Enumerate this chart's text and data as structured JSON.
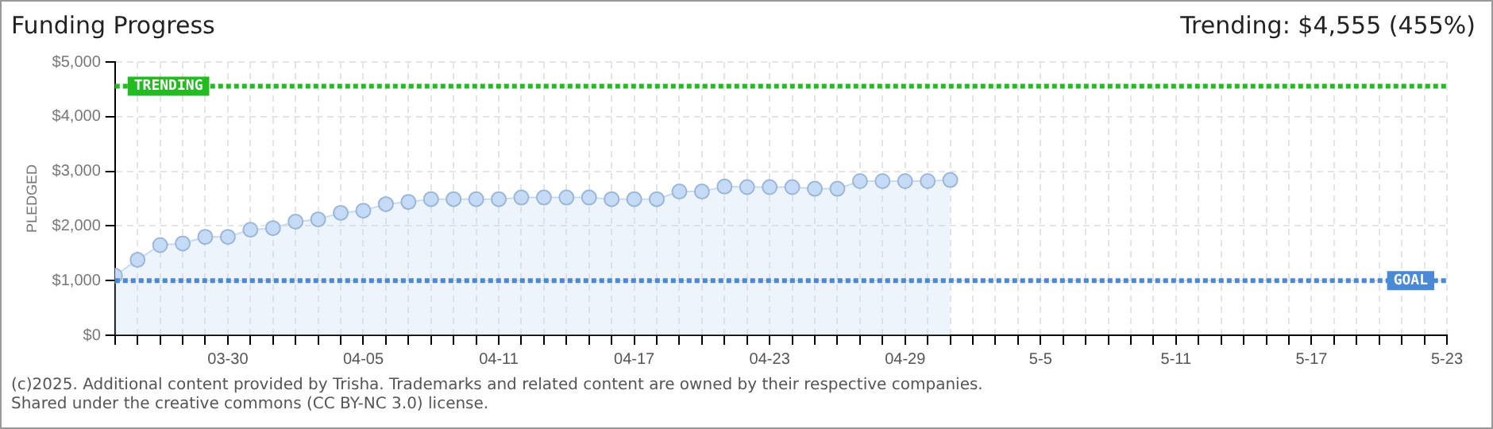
{
  "chart_data": {
    "type": "area",
    "title": "Funding Progress",
    "subtitle": "Trending: $4,555 (455%)",
    "ylabel": "PLEDGED",
    "x": [
      "2025-03-25",
      "2025-03-26",
      "2025-03-27",
      "2025-03-28",
      "2025-03-29",
      "2025-03-30",
      "2025-03-31",
      "2025-04-01",
      "2025-04-02",
      "2025-04-03",
      "2025-04-04",
      "2025-04-05",
      "2025-04-06",
      "2025-04-07",
      "2025-04-08",
      "2025-04-09",
      "2025-04-10",
      "2025-04-11",
      "2025-04-12",
      "2025-04-13",
      "2025-04-14",
      "2025-04-15",
      "2025-04-16",
      "2025-04-17",
      "2025-04-18",
      "2025-04-19",
      "2025-04-20",
      "2025-04-21",
      "2025-04-22",
      "2025-04-23",
      "2025-04-24",
      "2025-04-25",
      "2025-04-26",
      "2025-04-27",
      "2025-04-28",
      "2025-04-29",
      "2025-04-30",
      "2025-05-01"
    ],
    "series": [
      {
        "color": "#c5daf5",
        "values": [
          1090,
          1380,
          1650,
          1680,
          1800,
          1800,
          1930,
          1960,
          2080,
          2120,
          2240,
          2280,
          2400,
          2440,
          2490,
          2490,
          2490,
          2490,
          2520,
          2520,
          2520,
          2520,
          2490,
          2490,
          2490,
          2630,
          2630,
          2720,
          2710,
          2710,
          2710,
          2680,
          2680,
          2820,
          2820,
          2820,
          2820,
          2840
        ]
      }
    ],
    "ylim": [
      0,
      5000
    ],
    "yticks": [
      {
        "value": 0,
        "label": "$0"
      },
      {
        "value": 1000,
        "label": "$1,000"
      },
      {
        "value": 2000,
        "label": "$2,000"
      },
      {
        "value": 3000,
        "label": "$3,000"
      },
      {
        "value": 4000,
        "label": "$4,000"
      },
      {
        "value": 5000,
        "label": "$5,000"
      }
    ],
    "xlim": [
      "2025-03-25",
      "2025-05-23"
    ],
    "xticks": [
      {
        "value": "2025-03-25",
        "label": null
      },
      {
        "value": "2025-03-26",
        "label": null
      },
      {
        "value": "2025-03-27",
        "label": null
      },
      {
        "value": "2025-03-28",
        "label": null
      },
      {
        "value": "2025-03-29",
        "label": null
      },
      {
        "value": "2025-03-30",
        "label": "03-30"
      },
      {
        "value": "2025-03-31",
        "label": null
      },
      {
        "value": "2025-04-01",
        "label": null
      },
      {
        "value": "2025-04-02",
        "label": null
      },
      {
        "value": "2025-04-03",
        "label": null
      },
      {
        "value": "2025-04-04",
        "label": null
      },
      {
        "value": "2025-04-05",
        "label": "04-05"
      },
      {
        "value": "2025-04-06",
        "label": null
      },
      {
        "value": "2025-04-07",
        "label": null
      },
      {
        "value": "2025-04-08",
        "label": null
      },
      {
        "value": "2025-04-09",
        "label": null
      },
      {
        "value": "2025-04-10",
        "label": null
      },
      {
        "value": "2025-04-11",
        "label": "04-11"
      },
      {
        "value": "2025-04-12",
        "label": null
      },
      {
        "value": "2025-04-13",
        "label": null
      },
      {
        "value": "2025-04-14",
        "label": null
      },
      {
        "value": "2025-04-15",
        "label": null
      },
      {
        "value": "2025-04-16",
        "label": null
      },
      {
        "value": "2025-04-17",
        "label": "04-17"
      },
      {
        "value": "2025-04-18",
        "label": null
      },
      {
        "value": "2025-04-19",
        "label": null
      },
      {
        "value": "2025-04-20",
        "label": null
      },
      {
        "value": "2025-04-21",
        "label": null
      },
      {
        "value": "2025-04-22",
        "label": null
      },
      {
        "value": "2025-04-23",
        "label": "04-23"
      },
      {
        "value": "2025-04-24",
        "label": null
      },
      {
        "value": "2025-04-25",
        "label": null
      },
      {
        "value": "2025-04-26",
        "label": null
      },
      {
        "value": "2025-04-27",
        "label": null
      },
      {
        "value": "2025-04-28",
        "label": null
      },
      {
        "value": "2025-04-29",
        "label": "04-29"
      },
      {
        "value": "2025-04-30",
        "label": null
      },
      {
        "value": "2025-05-01",
        "label": null
      },
      {
        "value": "2025-05-02",
        "label": null
      },
      {
        "value": "2025-05-03",
        "label": null
      },
      {
        "value": "2025-05-04",
        "label": null
      },
      {
        "value": "2025-05-05",
        "label": "5-5"
      },
      {
        "value": "2025-05-06",
        "label": null
      },
      {
        "value": "2025-05-07",
        "label": null
      },
      {
        "value": "2025-05-08",
        "label": null
      },
      {
        "value": "2025-05-09",
        "label": null
      },
      {
        "value": "2025-05-10",
        "label": null
      },
      {
        "value": "2025-05-11",
        "label": "5-11"
      },
      {
        "value": "2025-05-12",
        "label": null
      },
      {
        "value": "2025-05-13",
        "label": null
      },
      {
        "value": "2025-05-14",
        "label": null
      },
      {
        "value": "2025-05-15",
        "label": null
      },
      {
        "value": "2025-05-16",
        "label": null
      },
      {
        "value": "2025-05-17",
        "label": "5-17"
      },
      {
        "value": "2025-05-18",
        "label": null
      },
      {
        "value": "2025-05-19",
        "label": null
      },
      {
        "value": "2025-05-20",
        "label": null
      },
      {
        "value": "2025-05-21",
        "label": null
      },
      {
        "value": "2025-05-22",
        "label": null
      },
      {
        "value": "2025-05-23",
        "label": "5-23"
      }
    ],
    "grid": true,
    "marker": "circle",
    "ref_lines": [
      {
        "axis": "y",
        "value": 4555,
        "label": "TRENDING",
        "color": "#22bb22",
        "line_style": "dotted"
      },
      {
        "axis": "y",
        "value": 1000,
        "label": "GOAL",
        "color": "#4a8ad4",
        "line_style": "dotted"
      }
    ],
    "annotations": [
      "(c)2025. Additional content provided by Trisha. Trademarks and related content are owned by their respective companies.",
      "Shared under the creative commons (CC BY-NC 3.0) license."
    ]
  }
}
